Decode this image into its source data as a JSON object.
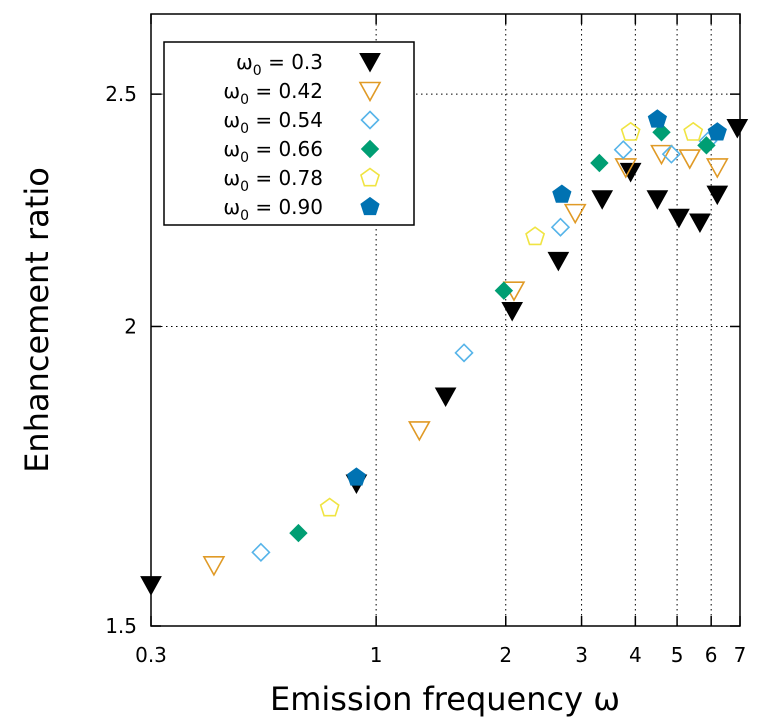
{
  "chart_data": {
    "type": "scatter",
    "title": "",
    "xlabel": "Emission frequency ω",
    "ylabel": "Enhancement ratio",
    "x_scale": "log",
    "y_scale": "log",
    "xlim": [
      0.3,
      7
    ],
    "ylim": [
      1.5,
      2.7
    ],
    "x_ticks": [
      0.3,
      1,
      2,
      3,
      4,
      5,
      6,
      7
    ],
    "x_tick_labels": [
      "0.3",
      "1",
      "2",
      "3",
      "4",
      "5",
      "6",
      "7"
    ],
    "y_ticks": [
      1.5,
      2,
      2.5
    ],
    "y_tick_labels": [
      "1.5",
      "2",
      "2.5"
    ],
    "grid": "dotted at major ticks",
    "legend_position": "top-left",
    "series": [
      {
        "name_base": "ω",
        "name_sub": "0",
        "name_value": " = 0.3",
        "marker": "triangle-down-filled",
        "color": "#000000",
        "points": [
          [
            0.3,
            1.56
          ],
          [
            0.9,
            1.72
          ],
          [
            1.45,
            1.87
          ],
          [
            2.07,
            2.03
          ],
          [
            2.65,
            2.13
          ],
          [
            3.35,
            2.26
          ],
          [
            3.9,
            2.32
          ],
          [
            4.5,
            2.26
          ],
          [
            5.05,
            2.22
          ],
          [
            5.65,
            2.21
          ],
          [
            6.2,
            2.27
          ],
          [
            6.9,
            2.42
          ]
        ]
      },
      {
        "name_base": "ω",
        "name_sub": "0",
        "name_value": " = 0.42",
        "marker": "triangle-down-open",
        "color": "#e09a26",
        "points": [
          [
            0.42,
            1.59
          ],
          [
            1.26,
            1.81
          ],
          [
            2.09,
            2.07
          ],
          [
            2.9,
            2.23
          ],
          [
            3.8,
            2.33
          ],
          [
            4.6,
            2.36
          ],
          [
            5.35,
            2.35
          ],
          [
            6.2,
            2.33
          ]
        ]
      },
      {
        "name_base": "ω",
        "name_sub": "0",
        "name_value": " = 0.54",
        "marker": "diamond-open",
        "color": "#56b4e9",
        "points": [
          [
            0.54,
            1.61
          ],
          [
            1.6,
            1.95
          ],
          [
            2.68,
            2.2
          ],
          [
            3.75,
            2.37
          ],
          [
            4.85,
            2.36
          ],
          [
            5.9,
            2.39
          ]
        ]
      },
      {
        "name_base": "ω",
        "name_sub": "0",
        "name_value": " = 0.66",
        "marker": "diamond-filled",
        "color": "#009e73",
        "points": [
          [
            0.66,
            1.64
          ],
          [
            1.98,
            2.07
          ],
          [
            3.3,
            2.34
          ],
          [
            4.6,
            2.41
          ],
          [
            5.85,
            2.38
          ]
        ]
      },
      {
        "name_base": "ω",
        "name_sub": "0",
        "name_value": " = 0.78",
        "marker": "pentagon-open",
        "color": "#f0e442",
        "points": [
          [
            0.78,
            1.68
          ],
          [
            2.34,
            2.18
          ],
          [
            3.9,
            2.41
          ],
          [
            5.45,
            2.41
          ]
        ]
      },
      {
        "name_base": "ω",
        "name_sub": "0",
        "name_value": " = 0.90",
        "marker": "pentagon-filled",
        "color": "#0072b2",
        "points": [
          [
            0.9,
            1.73
          ],
          [
            2.7,
            2.27
          ],
          [
            4.5,
            2.44
          ],
          [
            6.2,
            2.41
          ]
        ]
      }
    ]
  }
}
